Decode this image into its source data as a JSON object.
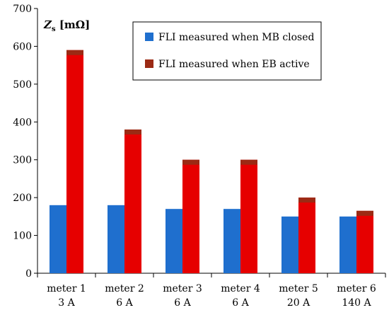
{
  "chart_data": {
    "type": "bar",
    "categories": [
      "meter 1",
      "meter 2",
      "meter 3",
      "meter 4",
      "meter 5",
      "meter 6"
    ],
    "sublabels": [
      "3 A",
      "6 A",
      "6 A",
      "6 A",
      "20 A",
      "140 A"
    ],
    "series": [
      {
        "name": "FLI measured when MB closed",
        "values": [
          180,
          180,
          170,
          170,
          150,
          150
        ],
        "color": "#1f6fce"
      },
      {
        "name": "FLI measured when EB active",
        "values": [
          590,
          380,
          300,
          300,
          200,
          165
        ],
        "color": "#e60000",
        "cap_color": "#9b2a14"
      }
    ],
    "ylabel": "Z",
    "ylabel_sub": "s",
    "ylabel_unit": " [mΩ]",
    "ylim": [
      0,
      700
    ],
    "yticks": [
      0,
      100,
      200,
      300,
      400,
      500,
      600,
      700
    ],
    "legend_position": "top-right",
    "grid": false
  }
}
